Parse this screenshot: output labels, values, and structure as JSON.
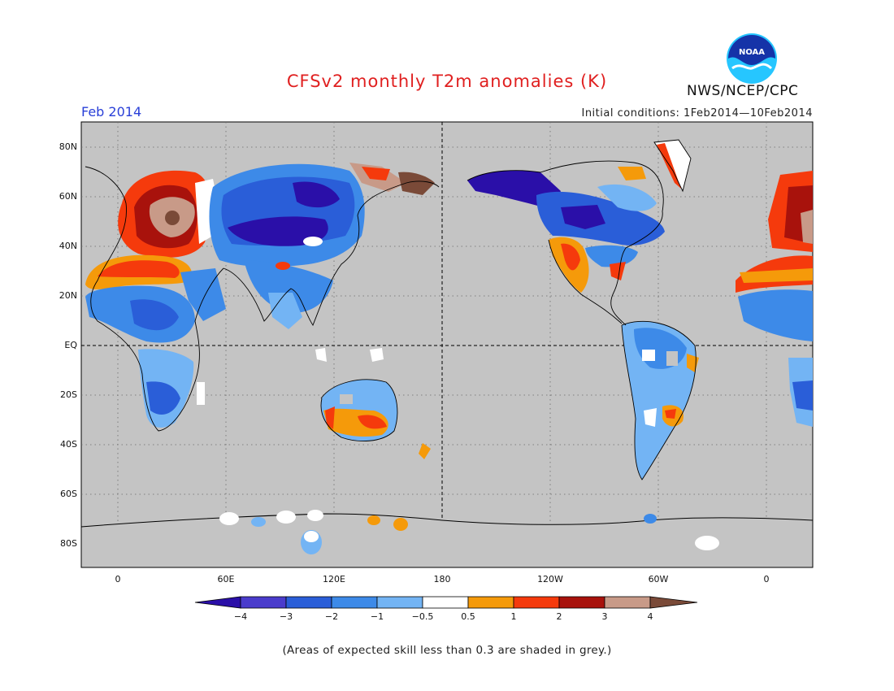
{
  "title": "CFSv2 monthly T2m anomalies (K)",
  "month": "Feb 2014",
  "initial_conditions": "Initial conditions: 1Feb2014—10Feb2014",
  "agency": "NWS/NCEP/CPC",
  "logo_text": "NOAA",
  "footnote": "(Areas of expected skill less than 0.3 are shaded in grey.)",
  "lat_labels": [
    "80N",
    "60N",
    "40N",
    "20N",
    "EQ",
    "20S",
    "40S",
    "60S",
    "80S"
  ],
  "lon_labels": [
    "0",
    "60E",
    "120E",
    "180",
    "120W",
    "60W",
    "0"
  ],
  "colorbar": {
    "tick_labels": [
      "−4",
      "−3",
      "−2",
      "−1",
      "−0.5",
      "0.5",
      "1",
      "2",
      "3",
      "4"
    ],
    "colors": [
      "#2a0fa8",
      "#4a3ccc",
      "#2a5ed8",
      "#3d8ae8",
      "#73b4f4",
      "#ffffff",
      "#f59a0a",
      "#f53a0c",
      "#a8120c",
      "#c89a88",
      "#7a4a38"
    ]
  },
  "colors": {
    "title": "#e02020",
    "month": "#2a40d8",
    "ocean_grey": "#c4c4c4",
    "logo_blue": "#1533a8",
    "logo_cyan": "#26c6ff"
  }
}
